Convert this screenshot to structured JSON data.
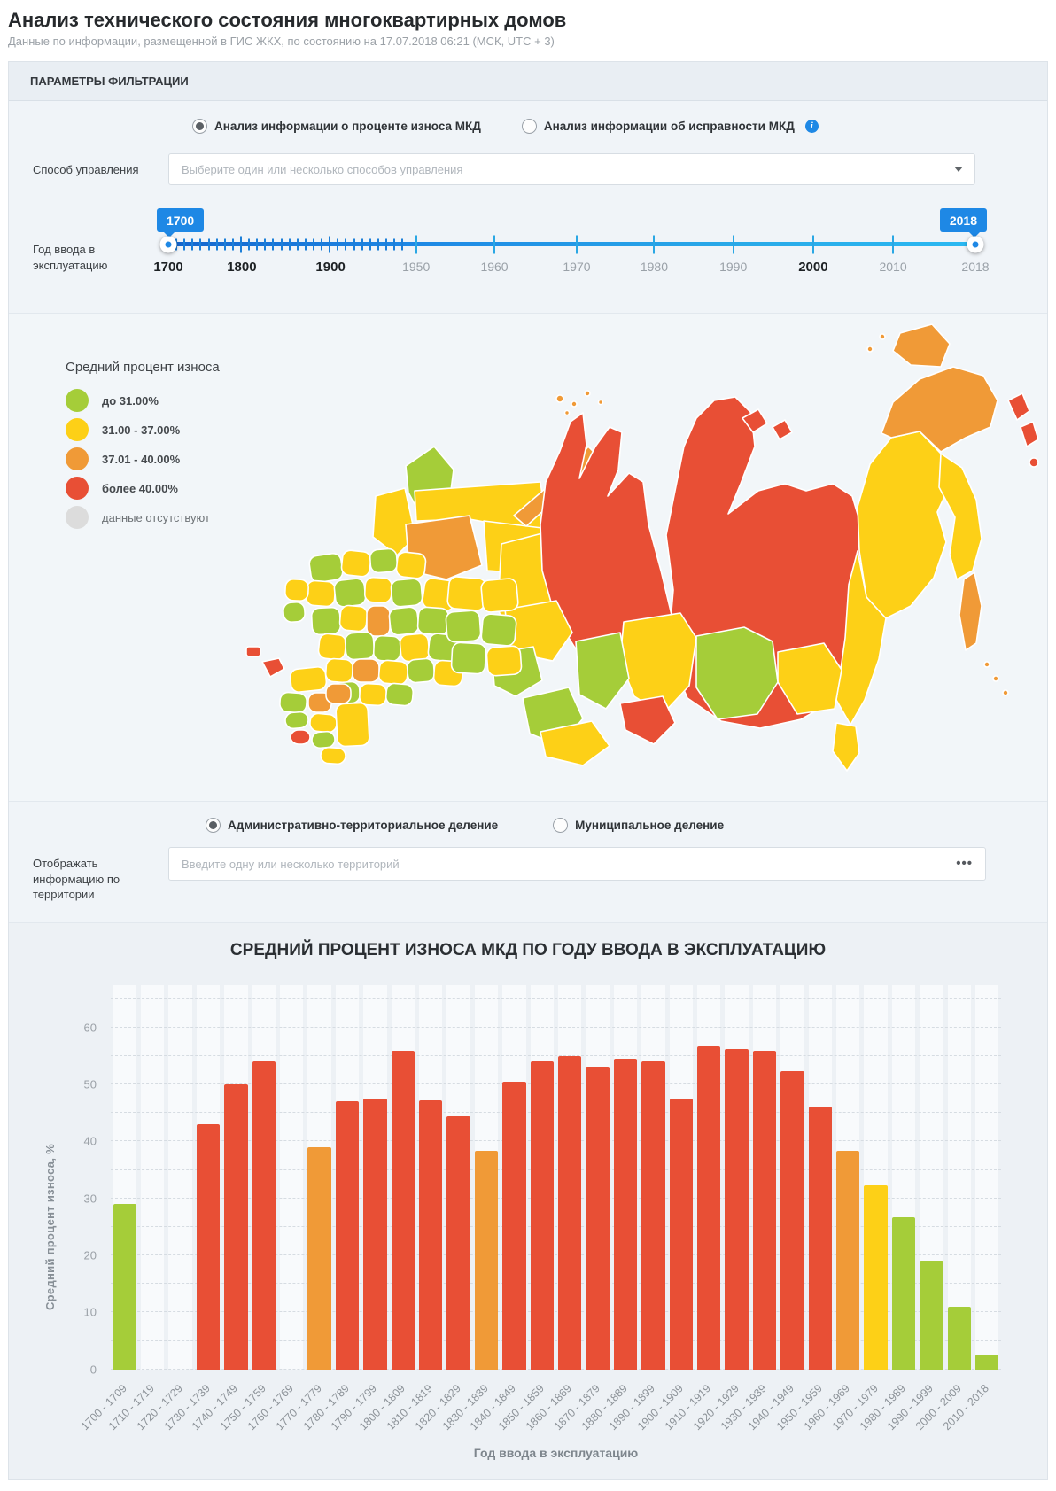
{
  "page": {
    "title": "Анализ технического состояния многоквартирных домов",
    "subtitle": "Данные по информации, размещенной в ГИС ЖКХ, по состоянию на 17.07.2018 06:21 (МСК, UTC + 3)"
  },
  "ui_colors": {
    "accent_blue": "#1e88e5",
    "track_start": "#1565cd",
    "track_end": "#2bb9f2"
  },
  "filter_panel": {
    "header": "ПАРАМЕТРЫ ФИЛЬТРАЦИИ",
    "analysis_radios": [
      {
        "label": "Анализ информации о проценте износа МКД",
        "selected": true,
        "info_icon": false
      },
      {
        "label": "Анализ информации об исправности МКД",
        "selected": false,
        "info_icon": true
      }
    ],
    "management": {
      "label": "Способ управления",
      "placeholder": "Выберите один или несколько способов управления"
    },
    "year_slider": {
      "label": "Год ввода в эксплуатацию",
      "min_tooltip": "1700",
      "max_tooltip": "2018",
      "axis": [
        {
          "label": "1700",
          "pos": 0,
          "bold": true
        },
        {
          "label": "1800",
          "pos": 9.1,
          "bold": true
        },
        {
          "label": "1900",
          "pos": 20.1,
          "bold": true
        },
        {
          "label": "1950",
          "pos": 30.7,
          "bold": false
        },
        {
          "label": "1960",
          "pos": 40.4,
          "bold": false
        },
        {
          "label": "1970",
          "pos": 50.6,
          "bold": false
        },
        {
          "label": "1980",
          "pos": 60.2,
          "bold": false
        },
        {
          "label": "1990",
          "pos": 70.0,
          "bold": false
        },
        {
          "label": "2000",
          "pos": 79.9,
          "bold": true
        },
        {
          "label": "2010",
          "pos": 89.8,
          "bold": false
        },
        {
          "label": "2018",
          "pos": 100,
          "bold": false
        }
      ],
      "decade_tick_positions": [
        30.7,
        40.4,
        50.6,
        60.2,
        70.0,
        79.9,
        89.8
      ]
    }
  },
  "map_section": {
    "legend": {
      "title": "Средний процент износа",
      "items": [
        {
          "label": "до 31.00%",
          "color": "#a5cd39",
          "muted": false
        },
        {
          "label": "31.00 - 37.00%",
          "color": "#fdd017",
          "muted": false
        },
        {
          "label": "37.01 - 40.00%",
          "color": "#f09a37",
          "muted": false
        },
        {
          "label": "более 40.00%",
          "color": "#e84f35",
          "muted": false
        },
        {
          "label": "данные отсутствуют",
          "color": "#dcdcdc",
          "muted": true
        }
      ]
    }
  },
  "territory_panel": {
    "radios": [
      {
        "label": "Административно-территориальное деление",
        "selected": true,
        "info_icon": false
      },
      {
        "label": "Муниципальное деление",
        "selected": false,
        "info_icon": false
      }
    ],
    "label": "Отображать информацию по территории",
    "placeholder": "Введите одну или несколько территорий",
    "more_icon": "•••"
  },
  "chart_data": {
    "type": "bar",
    "title": "СРЕДНИЙ ПРОЦЕНТ ИЗНОСА МКД ПО ГОДУ ВВОДА В ЭКСПЛУАТАЦИЮ",
    "xlabel": "Год ввода в эксплуатацию",
    "ylabel": "Средний процент износа, %",
    "ylim": [
      0,
      67.5
    ],
    "yticks": [
      0,
      10,
      20,
      30,
      40,
      50,
      60
    ],
    "grid_step": 5,
    "grid": true,
    "categories": [
      "1700 - 1709",
      "1710 - 1719",
      "1720 - 1729",
      "1730 - 1739",
      "1740 - 1749",
      "1750 - 1759",
      "1760 - 1769",
      "1770 - 1779",
      "1780 - 1789",
      "1790 - 1799",
      "1800 - 1809",
      "1810 - 1819",
      "1820 - 1829",
      "1830 - 1839",
      "1840 - 1849",
      "1850 - 1859",
      "1860 - 1869",
      "1870 - 1879",
      "1880 - 1889",
      "1890 - 1899",
      "1900 - 1909",
      "1910 - 1919",
      "1920 - 1929",
      "1930 - 1939",
      "1940 - 1949",
      "1950 - 1959",
      "1960 - 1969",
      "1970 - 1979",
      "1980 - 1989",
      "1990 - 1999",
      "2000 - 2009",
      "2010 - 2018"
    ],
    "values": [
      29,
      null,
      null,
      43,
      50,
      54,
      null,
      39,
      47,
      47.5,
      56,
      47.3,
      44.4,
      38.3,
      50.5,
      54,
      55,
      53.2,
      54.5,
      54,
      47.6,
      56.7,
      56.3,
      56,
      52.4,
      46.2,
      38.3,
      32.3,
      26.7,
      19,
      11,
      2.6
    ],
    "color_thresholds": {
      "green_below": 31,
      "yellow_max": 37.0,
      "orange_max": 40.0
    },
    "palette": {
      "green": "#a5cd39",
      "yellow": "#fdd017",
      "orange": "#f09a37",
      "red": "#e84f35",
      "nodata": "#dcdcdc"
    }
  }
}
